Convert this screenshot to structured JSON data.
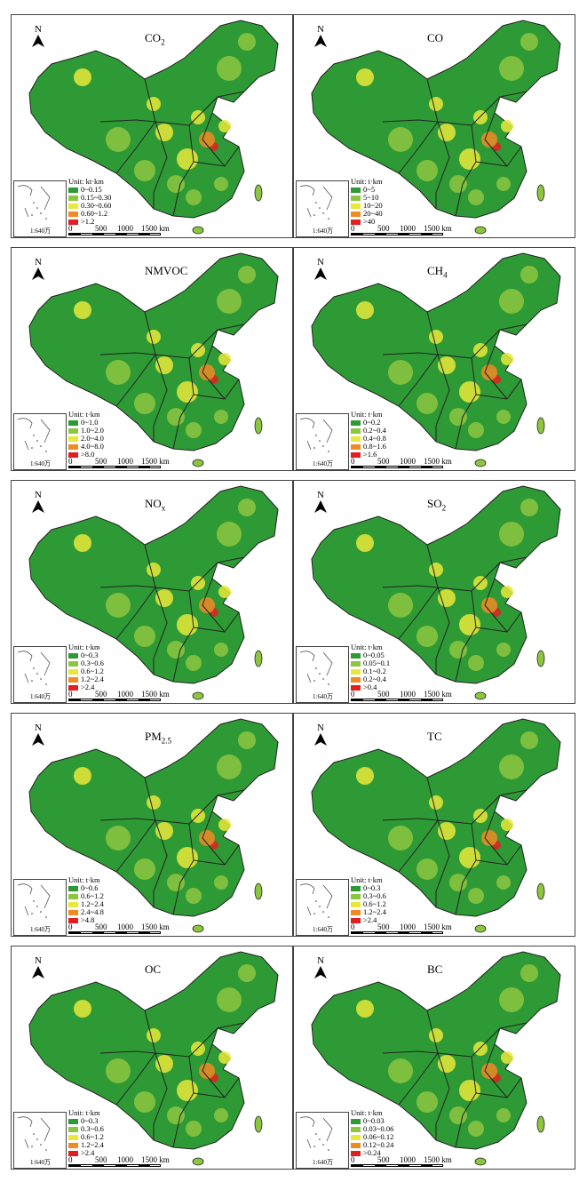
{
  "common": {
    "north": "N",
    "inset_label": "1:640万",
    "scale_labels": [
      "0",
      "500",
      "1000",
      "1500 km"
    ],
    "colors": [
      "#2e9a35",
      "#8cc641",
      "#e8e83a",
      "#f08a24",
      "#e02020"
    ]
  },
  "panels": [
    {
      "title": "CO",
      "sub": "2",
      "unit": "Unit: kt·km",
      "classes": [
        "0~0.15",
        "0.15~0.30",
        "0.30~0.60",
        "0.60~1.2",
        ">1.2"
      ]
    },
    {
      "title": "CO",
      "sub": "",
      "unit": "Unit: t·km",
      "classes": [
        "0~5",
        "5~10",
        "10~20",
        "20~40",
        ">40"
      ]
    },
    {
      "title": "NMVOC",
      "sub": "",
      "unit": "Unit: t·km",
      "classes": [
        "0~1.0",
        "1.0~2.0",
        "2.0~4.0",
        "4.0~8.0",
        ">8.0"
      ]
    },
    {
      "title": "CH",
      "sub": "4",
      "unit": "Unit: t·km",
      "classes": [
        "0~0.2",
        "0.2~0.4",
        "0.4~0.8",
        "0.8~1.6",
        ">1.6"
      ]
    },
    {
      "title": "NO",
      "sub": "x",
      "unit": "Unit: t·km",
      "classes": [
        "0~0.3",
        "0.3~0.6",
        "0.6~1.2",
        "1.2~2.4",
        ">2.4"
      ]
    },
    {
      "title": "SO",
      "sub": "2",
      "unit": "Unit: t·km",
      "classes": [
        "0~0.05",
        "0.05~0.1",
        "0.1~0.2",
        "0.2~0.4",
        ">0.4"
      ]
    },
    {
      "title": "PM",
      "sub": "2.5",
      "unit": "Unit: t·km",
      "classes": [
        "0~0.6",
        "0.6~1.2",
        "1.2~2.4",
        "2.4~4.8",
        ">4.8"
      ]
    },
    {
      "title": "TC",
      "sub": "",
      "unit": "Unit: t·km",
      "classes": [
        "0~0.3",
        "0.3~0.6",
        "0.6~1.2",
        "1.2~2.4",
        ">2.4"
      ]
    },
    {
      "title": "OC",
      "sub": "",
      "unit": "Unit: t·km",
      "classes": [
        "0~0.3",
        "0.3~0.6",
        "0.6~1.2",
        "1.2~2.4",
        ">2.4"
      ]
    },
    {
      "title": "BC",
      "sub": "",
      "unit": "Unit: t·km",
      "classes": [
        "0~0.03",
        "0.03~0.06",
        "0.06~0.12",
        "0.12~0.24",
        ">0.24"
      ]
    }
  ]
}
